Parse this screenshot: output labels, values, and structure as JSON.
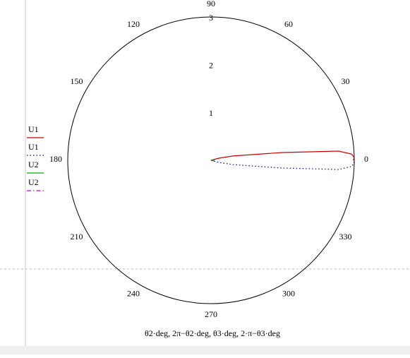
{
  "chart_data": {
    "type": "polar",
    "x_label": "θ2·deg, 2π−θ2·deg, θ3·deg, 2·π−θ3·deg",
    "rlim": [
      0,
      3
    ],
    "rticks": [
      1,
      2,
      3
    ],
    "angle_ticks": [
      0,
      30,
      60,
      90,
      120,
      150,
      180,
      210,
      240,
      270,
      300,
      330
    ],
    "series": [
      {
        "name": "U1",
        "color": "#cc0000",
        "style": "solid",
        "theta": [
          20,
          15,
          11,
          6.2,
          4.1,
          2.5,
          1,
          0
        ],
        "r": [
          0,
          0.17,
          0.47,
          1.5,
          2.68,
          2.95,
          3.0,
          2.98
        ]
      },
      {
        "name": "U1",
        "color": "#00008b",
        "style": "dotted",
        "theta": [
          340,
          345,
          349,
          353.8,
          355.9,
          357.5,
          359,
          0
        ],
        "r": [
          0,
          0.17,
          0.47,
          1.5,
          2.68,
          2.95,
          3.0,
          2.98
        ]
      },
      {
        "name": "U2",
        "color": "#00aa00",
        "style": "solid",
        "theta": [
          0,
          10,
          20
        ],
        "r": [
          0,
          0.05,
          0.04
        ]
      },
      {
        "name": "U2",
        "color": "#cc00cc",
        "style": "dashdot",
        "theta": [
          340,
          350,
          0
        ],
        "r": [
          0.04,
          0.05,
          0
        ]
      }
    ]
  }
}
